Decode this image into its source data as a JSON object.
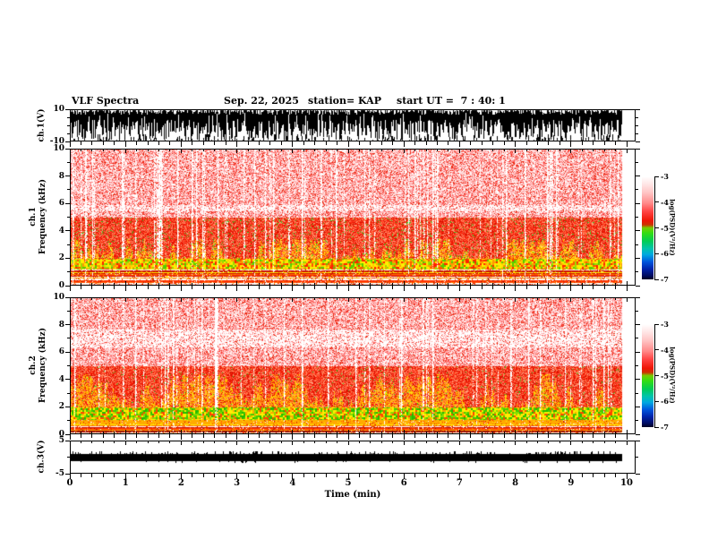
{
  "header": {
    "title": "VLF Spectra",
    "date": "Sep. 22, 2025",
    "station": "station= KAP",
    "start_ut": "start UT =  7 : 40: 1"
  },
  "chart_data": {
    "type": "heatmap",
    "title": "VLF Spectra",
    "date": "Sep. 22, 2025",
    "station": "KAP",
    "start_ut": "7 : 40: 1",
    "xlabel": "Time (min)",
    "x_range_min": [
      0,
      10.2
    ],
    "x_data_extent_min": 9.9,
    "x_major_ticks": [
      0,
      1,
      2,
      3,
      4,
      5,
      6,
      7,
      8,
      9,
      10
    ],
    "x_minor_tick_step_min": 0.2,
    "panels": [
      {
        "name": "ch.1 waveform",
        "type": "line",
        "ylabel": "ch.1(V)",
        "ylim": [
          -10,
          10
        ],
        "y_tick_labels": [
          10,
          -10
        ],
        "description": "dense broadband black noise filling nearly the full ±10 V range for the whole 0–9.9 min record"
      },
      {
        "name": "ch.1 spectrogram",
        "type": "heatmap",
        "ylabel_lines": [
          "ch.1",
          "Frequency (kHz)"
        ],
        "ylim_khz": [
          0,
          10
        ],
        "y_major_ticks": [
          10,
          8,
          6,
          4,
          2,
          0
        ],
        "y_minor_tick_step_khz": 1,
        "value_scale": "log PSD from -7 (blue/black) to -3 (white/pink)",
        "texture": {
          "white_band_khz": [
            5.45,
            5.9
          ],
          "white_band_prob": 0.45,
          "flame_range_khz": [
            1.6,
            3.4
          ],
          "flame_colors": [
            "#ffdd00",
            "#ffaa00",
            "#ff8800",
            "#ffee44"
          ],
          "bands": [
            {
              "range_khz": [
                5,
                10.01
              ],
              "style": "pale-speckle",
              "colors": [
                "#ffffff",
                "#ffdcdc",
                "#ffbcbc",
                "#ff9494",
                "#ff6060",
                "#ea2a12"
              ]
            },
            {
              "range_khz": [
                2,
                5
              ],
              "style": "hot-speckle",
              "flame": true,
              "fleck_color": "#2ecc22",
              "fleck_prob": 0.045,
              "colors": [
                "#ff2a10",
                "#ee1804",
                "#ff5030",
                "#ff7848",
                "#d81000",
                "#ff9878"
              ]
            },
            {
              "range_khz": [
                1.2,
                2
              ],
              "style": "chunky",
              "colors": [
                "#ffee00",
                "#ffcc00",
                "#ff9900",
                "#ff5500",
                "#55cc00",
                "#99dd00",
                "#ff2200",
                "#ffee00"
              ]
            },
            {
              "range_khz": [
                0.65,
                1.2
              ],
              "style": "stripes",
              "colors": [
                "#ff3300",
                "#ffaa00",
                "#ffffff",
                "#cc1100",
                "#ffee00",
                "#ff6600"
              ]
            },
            {
              "range_khz": [
                0,
                0.65
              ],
              "style": "stripes",
              "colors": [
                "#cc1100",
                "#ff5500",
                "#ffffff",
                "#ff9900",
                "#991100",
                "#ff3300"
              ]
            }
          ]
        }
      },
      {
        "name": "ch.2 spectrogram",
        "type": "heatmap",
        "ylabel_lines": [
          "ch.2",
          "Frequency (kHz)"
        ],
        "ylim_khz": [
          0,
          10
        ],
        "y_major_ticks": [
          10,
          8,
          6,
          4,
          2,
          0
        ],
        "y_minor_tick_step_khz": 1,
        "value_scale": "log PSD from -7 (blue/black) to -3 (white/pink)",
        "texture": {
          "white_band_khz": [
            6.4,
            7.7
          ],
          "white_band_prob": 0.5,
          "flame_range_khz": [
            1.8,
            4.4
          ],
          "flame_colors": [
            "#ffdd00",
            "#ffaa00",
            "#ff8800",
            "#ffcc22"
          ],
          "bands": [
            {
              "range_khz": [
                5,
                10.01
              ],
              "style": "pale-speckle",
              "colors": [
                "#ffffff",
                "#ffdcdc",
                "#ffbcbc",
                "#ff9494",
                "#ff6060",
                "#ea2a12"
              ]
            },
            {
              "range_khz": [
                2,
                5
              ],
              "style": "hot-speckle",
              "flame": true,
              "fleck_color": "#2ecc22",
              "fleck_prob": 0.02,
              "colors": [
                "#ff2a10",
                "#ee1804",
                "#ff5030",
                "#ff7848",
                "#d81000",
                "#ff9878"
              ]
            },
            {
              "range_khz": [
                1.1,
                2
              ],
              "style": "chunky",
              "colors": [
                "#44cc00",
                "#88dd00",
                "#ffee00",
                "#ffaa00",
                "#ff4400",
                "#22bb00",
                "#ffee00"
              ]
            },
            {
              "range_khz": [
                0.6,
                1.1
              ],
              "style": "stripes",
              "colors": [
                "#ff3300",
                "#ffaa00",
                "#ffffff",
                "#cc1100",
                "#ffee00",
                "#ff6600"
              ]
            },
            {
              "range_khz": [
                0,
                0.6
              ],
              "style": "stripes",
              "colors": [
                "#cc1100",
                "#ff5500",
                "#ffffff",
                "#ff9900",
                "#991100",
                "#ff3300"
              ]
            }
          ]
        }
      },
      {
        "name": "ch.3 waveform",
        "type": "line",
        "ylabel": "ch.3(V)",
        "ylim": [
          -5,
          5
        ],
        "y_tick_labels": [
          5,
          -5
        ],
        "band_v": [
          -0.7,
          1.6
        ],
        "description": "flat saturated black band from about -0.7 V to +1.6 V with occasional tiny spikes"
      }
    ],
    "colorbar": {
      "label": "log(PSD)(V²/Hz)",
      "ticks": [
        -3,
        -4,
        -5,
        -6,
        -7
      ],
      "gradient": [
        {
          "offset": 0.0,
          "color": "#ffffff"
        },
        {
          "offset": 0.07,
          "color": "#ffe8e8"
        },
        {
          "offset": 0.16,
          "color": "#ffc4c4"
        },
        {
          "offset": 0.26,
          "color": "#ff8a8a"
        },
        {
          "offset": 0.34,
          "color": "#ff4444"
        },
        {
          "offset": 0.43,
          "color": "#ee1504"
        },
        {
          "offset": 0.47,
          "color": "#cc3300"
        },
        {
          "offset": 0.5,
          "color": "#77cc00"
        },
        {
          "offset": 0.55,
          "color": "#33dd11"
        },
        {
          "offset": 0.63,
          "color": "#00cc55"
        },
        {
          "offset": 0.7,
          "color": "#00c4aa"
        },
        {
          "offset": 0.76,
          "color": "#00a8e0"
        },
        {
          "offset": 0.83,
          "color": "#0055dd"
        },
        {
          "offset": 0.9,
          "color": "#0022aa"
        },
        {
          "offset": 0.96,
          "color": "#000d66"
        },
        {
          "offset": 1.0,
          "color": "#000022"
        }
      ]
    }
  }
}
